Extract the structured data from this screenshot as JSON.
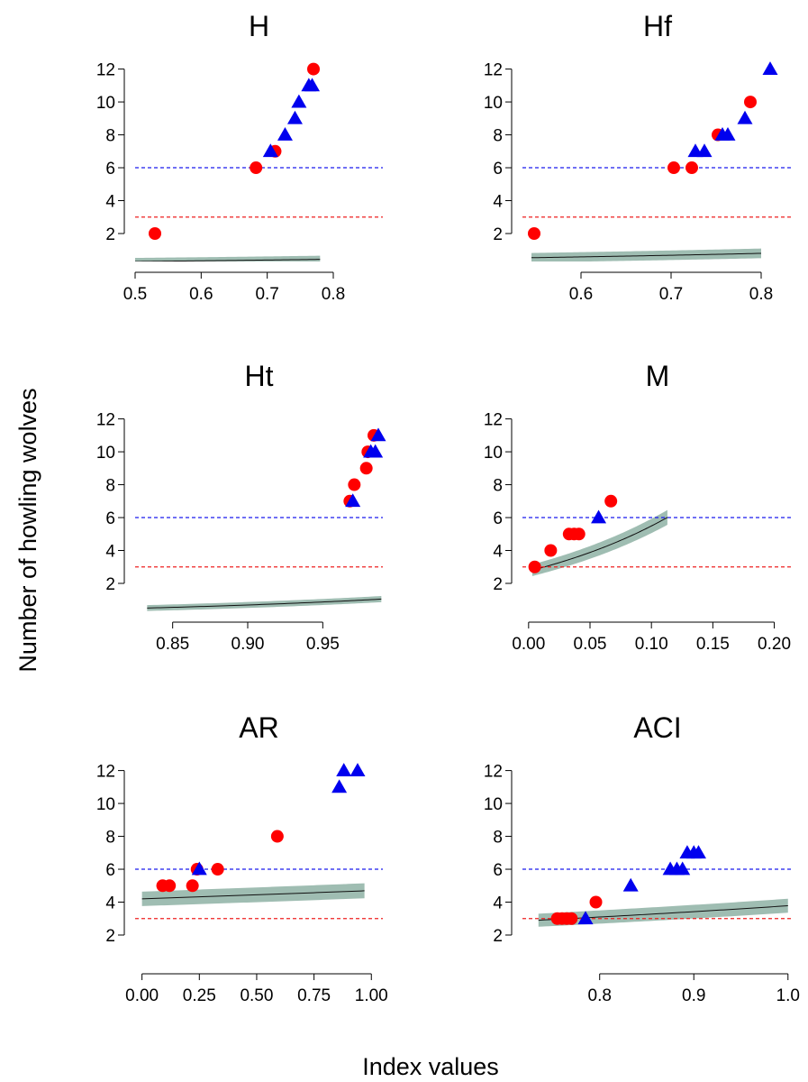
{
  "figure": {
    "ylabel": "Number of howling wolves",
    "xlabel": "Index values"
  },
  "colors": {
    "band": "#9fbdb2",
    "fit": "#111111",
    "ref_blue": "#1a1aee",
    "ref_red": "#ee2020",
    "red_points": "#ff0000",
    "blue_points": "#0000ee"
  },
  "chart_data": [
    {
      "type": "scatter",
      "title": "H",
      "xlim": [
        0.5,
        0.875
      ],
      "ylim": [
        0.3,
        12.8
      ],
      "xticks": [
        0.5,
        0.6,
        0.7,
        0.8
      ],
      "xtick_labels": [
        "0.5",
        "0.6",
        "0.7",
        "0.8"
      ],
      "yticks": [
        2,
        4,
        6,
        8,
        10,
        12
      ],
      "ref_lines": [
        6,
        3
      ],
      "fit": {
        "x_start": 0.5,
        "x_end": 0.78,
        "exp_a": 0.3,
        "exp_b": 0.0777,
        "band_halfwidth": 0.35
      },
      "series": [
        {
          "marker": "circle",
          "color": "red",
          "x": [
            0.53,
            0.683,
            0.712,
            0.77
          ],
          "y": [
            2,
            6,
            7,
            12
          ]
        },
        {
          "marker": "triangle",
          "color": "blue",
          "x": [
            0.705,
            0.727,
            0.742,
            0.748,
            0.763,
            0.768
          ],
          "y": [
            7,
            8,
            9,
            10,
            11,
            11
          ]
        }
      ]
    },
    {
      "type": "scatter",
      "title": "Hf",
      "xlim": [
        0.535,
        0.835
      ],
      "ylim": [
        0.3,
        12.8
      ],
      "xticks": [
        0.6,
        0.7,
        0.8
      ],
      "xtick_labels": [
        "0.6",
        "0.7",
        "0.8"
      ],
      "yticks": [
        2,
        4,
        6,
        8,
        10,
        12
      ],
      "ref_lines": [
        6,
        3
      ],
      "fit": {
        "x_start": 0.545,
        "x_end": 0.8,
        "exp_a": 0.53,
        "exp_b": 0.0628,
        "band_halfwidth": 0.45
      },
      "series": [
        {
          "marker": "circle",
          "color": "red",
          "x": [
            0.548,
            0.703,
            0.723,
            0.752,
            0.788
          ],
          "y": [
            2,
            6,
            6,
            8,
            10
          ]
        },
        {
          "marker": "triangle",
          "color": "blue",
          "x": [
            0.727,
            0.737,
            0.757,
            0.763,
            0.782,
            0.81
          ],
          "y": [
            7,
            7,
            8,
            8,
            9,
            12
          ]
        }
      ]
    },
    {
      "type": "scatter",
      "title": "Ht",
      "xlim": [
        0.825,
        0.99
      ],
      "ylim": [
        0.3,
        12.8
      ],
      "xticks": [
        0.85,
        0.9,
        0.95
      ],
      "xtick_labels": [
        "0.85",
        "0.90",
        "0.95"
      ],
      "yticks": [
        2,
        4,
        6,
        8,
        10,
        12
      ],
      "ref_lines": [
        6,
        3
      ],
      "fit": {
        "x_start": 0.833,
        "x_end": 0.989,
        "exp_a": 0.5,
        "exp_b": 0.0212,
        "band_halfwidth": 0.28
      },
      "series": [
        {
          "marker": "circle",
          "color": "red",
          "x": [
            0.968,
            0.971,
            0.979,
            0.98,
            0.984
          ],
          "y": [
            7,
            8,
            9,
            10,
            11
          ]
        },
        {
          "marker": "triangle",
          "color": "blue",
          "x": [
            0.97,
            0.982,
            0.985,
            0.987
          ],
          "y": [
            7,
            10,
            10,
            11
          ]
        }
      ]
    },
    {
      "type": "scatter",
      "title": "M",
      "xlim": [
        -0.005,
        0.215
      ],
      "ylim": [
        0.3,
        12.8
      ],
      "xticks": [
        0.0,
        0.05,
        0.1,
        0.15,
        0.2
      ],
      "xtick_labels": [
        "0.00",
        "0.05",
        "0.10",
        "0.15",
        "0.20"
      ],
      "yticks": [
        2,
        4,
        6,
        8,
        10,
        12
      ],
      "ref_lines": [
        6,
        3
      ],
      "fit": {
        "x_start": 0.003,
        "x_end": 0.113,
        "exp_a": 2.8,
        "exp_b": 0.0144,
        "band_halfwidth": 0.45
      },
      "series": [
        {
          "marker": "circle",
          "color": "red",
          "x": [
            0.005,
            0.018,
            0.033,
            0.037,
            0.041,
            0.067
          ],
          "y": [
            3,
            4,
            5,
            5,
            5,
            7
          ]
        },
        {
          "marker": "triangle",
          "color": "blue",
          "x": [
            0.057
          ],
          "y": [
            6
          ]
        }
      ]
    },
    {
      "type": "scatter",
      "title": "AR",
      "xlim": [
        -0.03,
        1.05
      ],
      "ylim": [
        0.3,
        12.8
      ],
      "xticks": [
        0.0,
        0.25,
        0.5,
        0.75,
        1.0
      ],
      "xtick_labels": [
        "0.00",
        "0.25",
        "0.50",
        "0.75",
        "1.00"
      ],
      "yticks": [
        2,
        4,
        6,
        8,
        10,
        12
      ],
      "ref_lines": [
        6,
        3
      ],
      "fit": {
        "x_start": 0.0,
        "x_end": 0.97,
        "exp_a": 4.2,
        "exp_b": 0.88,
        "band_halfwidth": 0.5
      },
      "series": [
        {
          "marker": "circle",
          "color": "red",
          "x": [
            0.09,
            0.12,
            0.22,
            0.24,
            0.33,
            0.59
          ],
          "y": [
            5,
            5,
            5,
            6,
            6,
            8
          ]
        },
        {
          "marker": "triangle",
          "color": "blue",
          "x": [
            0.25,
            0.86,
            0.88,
            0.94
          ],
          "y": [
            6,
            11,
            12,
            12
          ]
        }
      ]
    },
    {
      "type": "scatter",
      "title": "ACI",
      "xlim": [
        0.718,
        1.005
      ],
      "ylim": [
        0.3,
        12.8
      ],
      "xticks": [
        0.8,
        0.9,
        1.0
      ],
      "xtick_labels": [
        "0.8",
        "0.9",
        "1.0"
      ],
      "yticks": [
        2,
        4,
        6,
        8,
        10,
        12
      ],
      "ref_lines": [
        6,
        3
      ],
      "fit": {
        "x_start": 0.735,
        "x_end": 1.0,
        "exp_a": 2.9,
        "exp_b": 0.1,
        "band_halfwidth": 0.5
      },
      "series": [
        {
          "marker": "circle",
          "color": "red",
          "x": [
            0.755,
            0.76,
            0.765,
            0.77,
            0.796
          ],
          "y": [
            3,
            3,
            3,
            3,
            4
          ]
        },
        {
          "marker": "triangle",
          "color": "blue",
          "x": [
            0.785,
            0.833,
            0.875,
            0.882,
            0.888,
            0.893,
            0.9,
            0.905
          ],
          "y": [
            3,
            5,
            6,
            6,
            6,
            7,
            7,
            7
          ]
        }
      ]
    }
  ]
}
